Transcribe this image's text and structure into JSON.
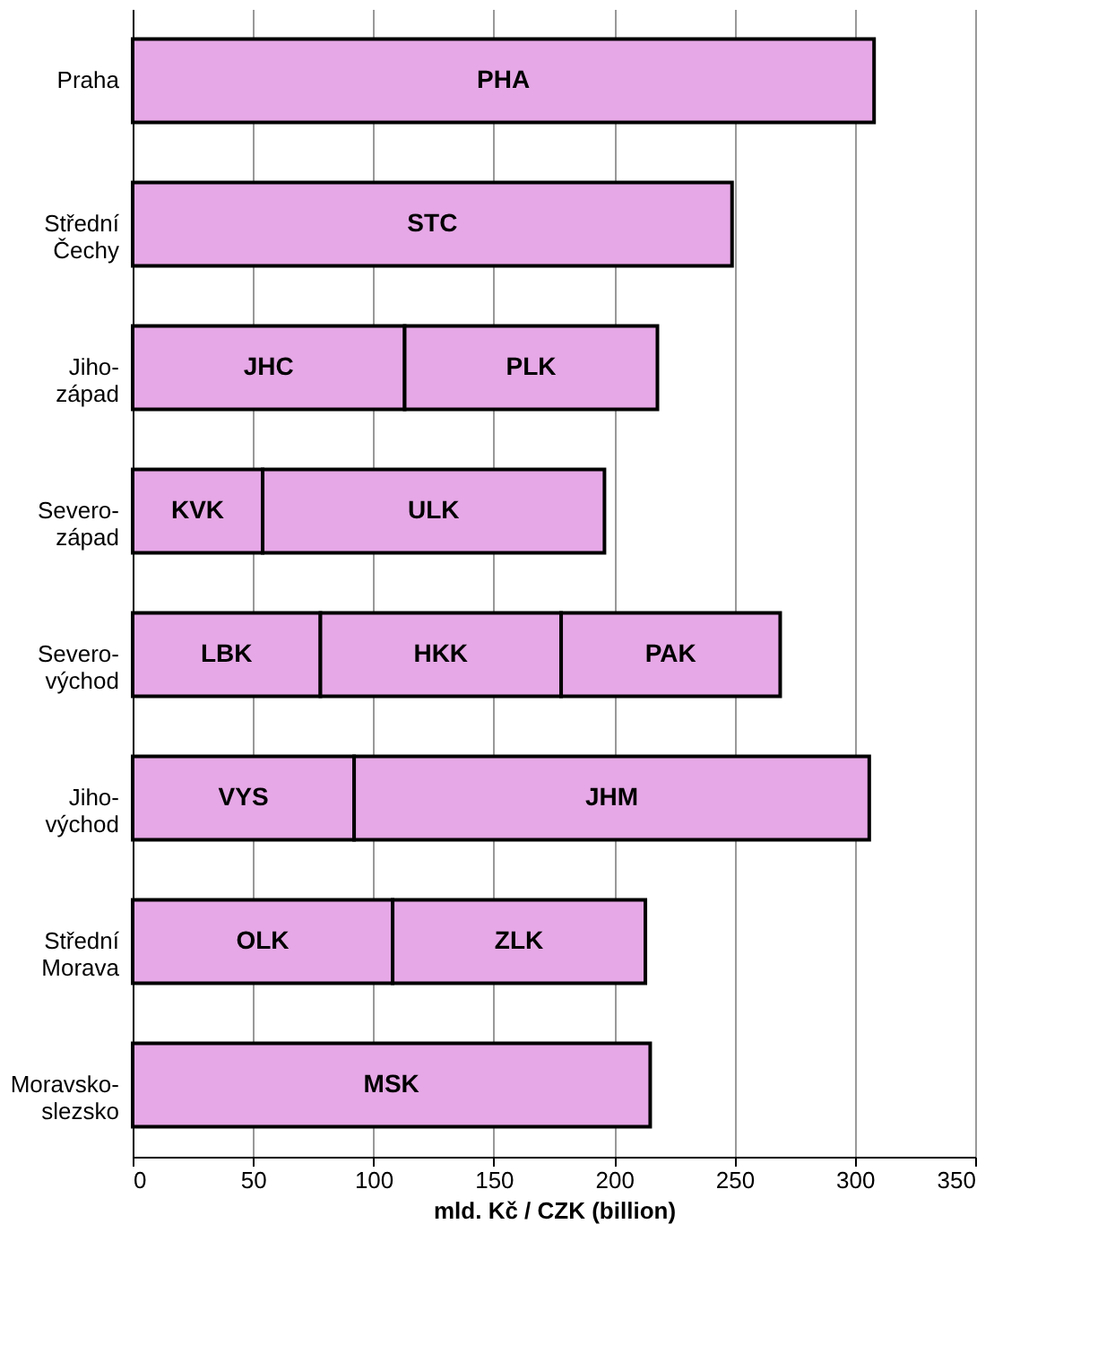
{
  "chart_data": {
    "type": "bar",
    "orientation": "horizontal",
    "stacked": true,
    "categories": [
      "Praha",
      "Střední Čechy",
      "Jiho-západ",
      "Severo-západ",
      "Severo-východ",
      "Jiho-východ",
      "Střední Morava",
      "Moravsko-slezsko"
    ],
    "series": [
      {
        "color": "#e6a8e6",
        "values": [
          308,
          249,
          113,
          54,
          78,
          92,
          108,
          215
        ],
        "value_labels": [
          "PHA",
          "STC",
          "JHC",
          "KVK",
          "LBK",
          "VYS",
          "OLK",
          "MSK"
        ]
      },
      {
        "color": "#e6a8e6",
        "values": [
          null,
          null,
          105,
          142,
          100,
          214,
          105,
          null
        ],
        "value_labels": [
          null,
          null,
          "PLK",
          "ULK",
          "HKK",
          "JHM",
          "ZLK",
          null
        ]
      },
      {
        "color": "#e6a8e6",
        "values": [
          null,
          null,
          null,
          null,
          91,
          null,
          null,
          null
        ],
        "value_labels": [
          null,
          null,
          null,
          null,
          "PAK",
          null,
          null,
          null
        ]
      }
    ],
    "xlabel": "mld. Kč / CZK (billion)",
    "xlim": [
      0,
      350
    ],
    "xticks": [
      0,
      50,
      100,
      150,
      200,
      250,
      300,
      350
    ],
    "grid": "x",
    "legend": false
  }
}
